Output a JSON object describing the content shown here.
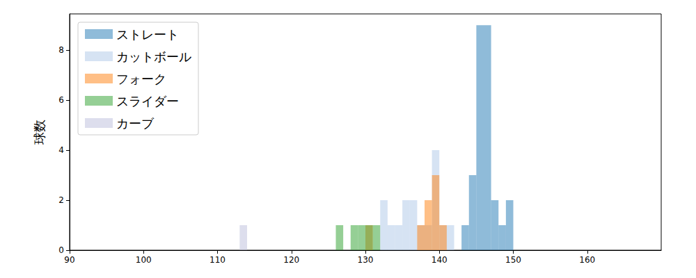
{
  "chart_data": {
    "type": "histogram",
    "y_label": "球数",
    "xlim": [
      90,
      170
    ],
    "xticks": [
      90,
      100,
      110,
      120,
      130,
      140,
      150,
      160
    ],
    "ylim": [
      0,
      9.45
    ],
    "yticks": [
      0,
      2,
      4,
      6,
      8
    ],
    "grid": false,
    "legend": "upper left",
    "series": [
      {
        "name": "ストレート",
        "color": "#1f77b4",
        "bins": [
          143,
          144,
          145,
          146,
          147,
          148,
          149,
          150
        ],
        "values": [
          1,
          3,
          9,
          9,
          2,
          1,
          2
        ]
      },
      {
        "name": "カットボール",
        "color": "#aec7e8",
        "bins": [
          132,
          133,
          134,
          135,
          136,
          137,
          138,
          139,
          140,
          141,
          142
        ],
        "values": [
          2,
          1,
          1,
          2,
          2,
          1,
          1,
          4,
          1,
          1
        ]
      },
      {
        "name": "フォーク",
        "color": "#ff7f0e",
        "bins": [
          130,
          131,
          132,
          133,
          134,
          135,
          136,
          137,
          138,
          139,
          140,
          141
        ],
        "values": [
          1,
          0,
          0,
          0,
          0,
          0,
          0,
          1,
          2,
          3,
          1
        ]
      },
      {
        "name": "スライダー",
        "color": "#2ca02c",
        "bins": [
          126,
          127,
          128,
          129,
          130,
          131,
          132
        ],
        "values": [
          1,
          0,
          1,
          1,
          1,
          1
        ]
      },
      {
        "name": "カーブ",
        "color": "#bcbddc",
        "bins": [
          113,
          114
        ],
        "values": [
          1
        ]
      }
    ]
  }
}
